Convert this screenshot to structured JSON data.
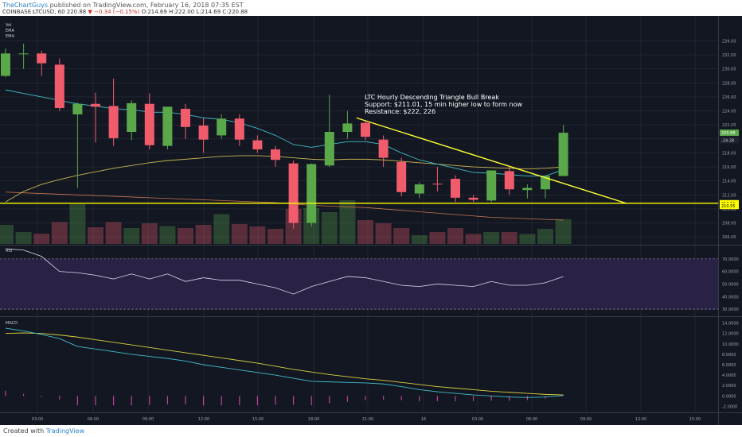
{
  "header": {
    "author": "TheChartGuys",
    "published_text": "published on TradingView.com, February 16, 2018 07:35 EST",
    "symbol": "COINBASE:LTCUSD, 60",
    "last": "220.88",
    "change_text": "▼ −0.34 (−0.15%)",
    "ohlc_text": "O:214.69 H:222.00 L:214.69 C:220.88"
  },
  "footer": {
    "created_with": "Created with",
    "brand": "TradingView"
  },
  "indicators": {
    "price_pane": [
      "Vol",
      "EMA",
      "EMA"
    ],
    "rsi": "RSI",
    "macd": "MACD"
  },
  "annotation": {
    "lines": [
      "LTC Hourly Descending Triangle Bull Break",
      "Support: $211.01, 15 min higher low to form now",
      "Resistance: $222, 226"
    ]
  },
  "colors": {
    "background": "#131722",
    "grid": "#2a2e39",
    "up": "#5ba84a",
    "down": "#f05c6c",
    "ema_fast": "#3fbcc8",
    "ema_slow": "#c7b552",
    "ema_long": "#c87850",
    "support_line": "#ffff00",
    "trendline": "#ffff33",
    "rsi_line": "#d8d8f0",
    "rsi_band": "#2a2244",
    "macd_line": "#3fbcc8",
    "signal_line": "#d8d040",
    "histogram": "#c040a0"
  },
  "chart_data": {
    "type": "candlestick",
    "x_ticks": [
      "03:00",
      "06:00",
      "09:00",
      "12:00",
      "15:00",
      "18:00",
      "21:00",
      "16",
      "03:00",
      "06:00",
      "09:00",
      "12:00",
      "15:00"
    ],
    "price_axis": {
      "ticks": [
        "234.00",
        "232.00",
        "230.00",
        "228.00",
        "226.00",
        "224.00",
        "222.00",
        "220.00",
        "218.00",
        "216.00",
        "214.00",
        "212.00",
        "210.00",
        "208.00",
        "206.00"
      ],
      "ylim": [
        205,
        237
      ],
      "labels": {
        "last": {
          "text": "220.88",
          "value": 220.88
        },
        "change": {
          "text": "-24:28",
          "value": 219.8
        },
        "support": {
          "text": "210.81",
          "value": 210.81
        },
        "support2": {
          "text": "210.55",
          "value": 210.42
        }
      }
    },
    "candles": [
      {
        "o": 229.0,
        "h": 232.9,
        "l": 228.8,
        "c": 232.2
      },
      {
        "o": 232.2,
        "h": 233.6,
        "l": 230.0,
        "c": 232.2
      },
      {
        "o": 232.2,
        "h": 232.6,
        "l": 229.0,
        "c": 230.8
      },
      {
        "o": 230.6,
        "h": 231.5,
        "l": 224.0,
        "c": 224.4
      },
      {
        "o": 223.5,
        "h": 225.2,
        "l": 213.0,
        "c": 225.0
      },
      {
        "o": 225.0,
        "h": 226.6,
        "l": 219.5,
        "c": 224.6
      },
      {
        "o": 224.7,
        "h": 228.6,
        "l": 219.0,
        "c": 220.1
      },
      {
        "o": 221.0,
        "h": 225.5,
        "l": 219.8,
        "c": 225.1
      },
      {
        "o": 225.0,
        "h": 226.5,
        "l": 218.5,
        "c": 219.1
      },
      {
        "o": 219.0,
        "h": 224.5,
        "l": 218.5,
        "c": 224.6
      },
      {
        "o": 224.3,
        "h": 225.0,
        "l": 220.0,
        "c": 221.7
      },
      {
        "o": 221.9,
        "h": 223.0,
        "l": 218.0,
        "c": 219.9
      },
      {
        "o": 220.5,
        "h": 223.5,
        "l": 220.0,
        "c": 222.9
      },
      {
        "o": 222.9,
        "h": 223.5,
        "l": 219.0,
        "c": 219.9
      },
      {
        "o": 219.8,
        "h": 220.5,
        "l": 218.0,
        "c": 218.5
      },
      {
        "o": 218.5,
        "h": 219.0,
        "l": 216.0,
        "c": 217.0
      },
      {
        "o": 216.5,
        "h": 216.9,
        "l": 207.2,
        "c": 208.0
      },
      {
        "o": 208.0,
        "h": 216.5,
        "l": 207.5,
        "c": 216.4
      },
      {
        "o": 216.2,
        "h": 226.3,
        "l": 216.0,
        "c": 221.0
      },
      {
        "o": 221.0,
        "h": 224.0,
        "l": 220.0,
        "c": 222.2
      },
      {
        "o": 222.3,
        "h": 222.6,
        "l": 219.8,
        "c": 220.3
      },
      {
        "o": 219.9,
        "h": 220.5,
        "l": 216.0,
        "c": 217.3
      },
      {
        "o": 216.7,
        "h": 217.3,
        "l": 211.8,
        "c": 212.4
      },
      {
        "o": 212.2,
        "h": 213.8,
        "l": 211.5,
        "c": 213.5
      },
      {
        "o": 213.6,
        "h": 216.0,
        "l": 212.5,
        "c": 213.5
      },
      {
        "o": 214.3,
        "h": 214.8,
        "l": 211.0,
        "c": 211.6
      },
      {
        "o": 211.6,
        "h": 212.0,
        "l": 211.0,
        "c": 211.3
      },
      {
        "o": 211.2,
        "h": 215.5,
        "l": 211.0,
        "c": 215.5
      },
      {
        "o": 215.4,
        "h": 216.0,
        "l": 212.0,
        "c": 212.8
      },
      {
        "o": 212.7,
        "h": 213.5,
        "l": 211.5,
        "c": 213.0
      },
      {
        "o": 212.8,
        "h": 214.8,
        "l": 211.5,
        "c": 214.7
      },
      {
        "o": 214.7,
        "h": 222.0,
        "l": 214.69,
        "c": 220.88
      }
    ],
    "ema_fast": [
      227.0,
      226.5,
      226.0,
      225.5,
      225.0,
      224.7,
      224.3,
      224.2,
      223.8,
      223.8,
      223.5,
      223.0,
      222.8,
      222.3,
      221.5,
      220.5,
      219.2,
      218.8,
      219.2,
      219.6,
      219.6,
      219.2,
      218.0,
      217.0,
      216.4,
      215.8,
      215.2,
      215.1,
      214.9,
      214.7,
      214.7,
      215.6
    ],
    "ema_slow": [
      211.0,
      212.5,
      213.5,
      214.2,
      214.8,
      215.3,
      215.8,
      216.2,
      216.6,
      216.9,
      217.1,
      217.3,
      217.5,
      217.6,
      217.6,
      217.5,
      217.3,
      217.1,
      217.0,
      217.1,
      217.1,
      217.0,
      216.8,
      216.6,
      216.4,
      216.2,
      216.0,
      215.9,
      215.8,
      215.7,
      215.8,
      216.0
    ],
    "ema_long": [
      212.4,
      212.3,
      212.2,
      212.1,
      212.0,
      211.9,
      211.8,
      211.7,
      211.6,
      211.5,
      211.4,
      211.3,
      211.2,
      211.1,
      211.0,
      210.9,
      210.7,
      210.5,
      210.4,
      210.3,
      210.2,
      210.0,
      209.8,
      209.6,
      209.4,
      209.2,
      209.0,
      208.8,
      208.7,
      208.6,
      208.5,
      208.4
    ],
    "support_level": 210.81,
    "trendline": {
      "from": {
        "i": 19.5,
        "v": 223.0
      },
      "to": {
        "i": 34.5,
        "v": 210.8
      }
    },
    "volume": [
      48,
      30,
      26,
      55,
      100,
      42,
      55,
      40,
      52,
      45,
      40,
      48,
      75,
      50,
      44,
      38,
      88,
      90,
      80,
      110,
      60,
      52,
      40,
      22,
      30,
      40,
      25,
      30,
      30,
      25,
      38,
      62
    ],
    "rsi": {
      "values": [
        78,
        77,
        72,
        60,
        59,
        57,
        54,
        58,
        54,
        58,
        52,
        55,
        53,
        53,
        50,
        47,
        42,
        48,
        52,
        56,
        55,
        52,
        49,
        48,
        50,
        49,
        48,
        52,
        49,
        49,
        51,
        56
      ],
      "ticks": [
        "70.0000",
        "60.0000",
        "50.0000",
        "40.0000",
        "30.0000"
      ],
      "ylim": [
        25,
        80
      ],
      "band": [
        30,
        70
      ]
    },
    "macd": {
      "macd": [
        13.0,
        12.5,
        11.8,
        11.0,
        9.5,
        9.0,
        8.5,
        8.0,
        7.6,
        7.2,
        6.7,
        6.0,
        5.5,
        5.0,
        4.5,
        4.0,
        3.4,
        2.8,
        2.7,
        2.6,
        2.5,
        2.3,
        1.8,
        1.2,
        0.8,
        0.5,
        0.2,
        0.0,
        -0.2,
        -0.3,
        -0.2,
        0.1
      ],
      "signal": [
        12.0,
        12.1,
        12.0,
        11.7,
        11.3,
        10.8,
        10.3,
        9.8,
        9.3,
        8.8,
        8.3,
        7.8,
        7.3,
        6.8,
        6.3,
        5.7,
        5.1,
        4.6,
        4.1,
        3.7,
        3.3,
        3.0,
        2.6,
        2.2,
        1.8,
        1.5,
        1.2,
        0.9,
        0.7,
        0.5,
        0.3,
        0.2
      ],
      "hist": [
        1.0,
        0.4,
        -0.2,
        -0.7,
        -1.8,
        -1.8,
        -1.8,
        -1.8,
        -1.7,
        -1.6,
        -1.6,
        -1.8,
        -1.8,
        -1.8,
        -1.8,
        -1.7,
        -1.7,
        -1.8,
        -1.4,
        -1.1,
        -0.8,
        -0.7,
        -0.8,
        -1.0,
        -1.0,
        -1.0,
        -1.0,
        -0.9,
        -0.9,
        -0.8,
        -0.5,
        -0.1
      ],
      "ticks": [
        "14.0000",
        "12.0000",
        "10.0000",
        "8.0000",
        "6.0000",
        "4.0000",
        "2.0000",
        "0.0000",
        "-2.0000"
      ],
      "ylim": [
        -3,
        15
      ]
    }
  }
}
